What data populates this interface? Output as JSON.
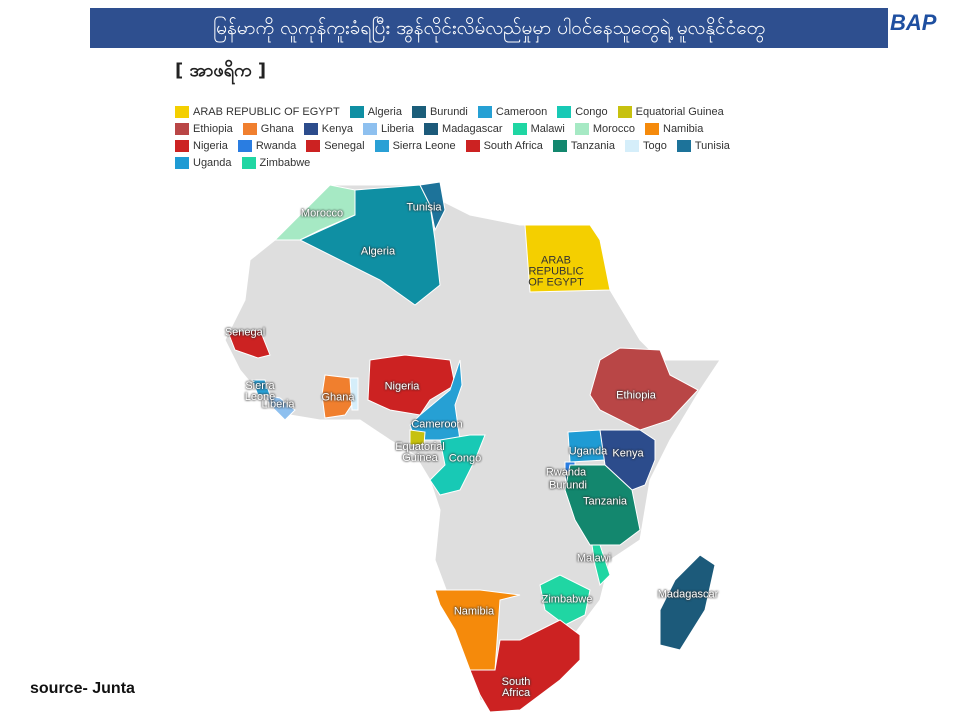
{
  "header": {
    "title": "မြန်မာကို လူကုန်ကူးခံရပြီး အွန်လိုင်းလိမ်လည်မှုမှာ ပါဝင်နေသူတွေရဲ့ မူလနိုင်ငံတွေ",
    "logo": "BAP"
  },
  "subtitle": "[ အာဖရိက ]",
  "legend": [
    {
      "name": "ARAB REPUBLIC OF EGYPT",
      "color": "#f4cf00"
    },
    {
      "name": "Algeria",
      "color": "#0f8fa3"
    },
    {
      "name": "Burundi",
      "color": "#1b5e7a"
    },
    {
      "name": "Cameroon",
      "color": "#26a0d4"
    },
    {
      "name": "Congo",
      "color": "#18c9b5"
    },
    {
      "name": "Equatorial Guinea",
      "color": "#c7c10f"
    },
    {
      "name": "Ethiopia",
      "color": "#b94646"
    },
    {
      "name": "Ghana",
      "color": "#f07f2e"
    },
    {
      "name": "Kenya",
      "color": "#2c4c8c"
    },
    {
      "name": "Liberia",
      "color": "#8ec0ef"
    },
    {
      "name": "Madagascar",
      "color": "#1c5a7a"
    },
    {
      "name": "Malawi",
      "color": "#1fd6a3"
    },
    {
      "name": "Morocco",
      "color": "#a6e9c4"
    },
    {
      "name": "Namibia",
      "color": "#f58a0b"
    },
    {
      "name": "Nigeria",
      "color": "#cc2222"
    },
    {
      "name": "Rwanda",
      "color": "#2a7de1"
    },
    {
      "name": "Senegal",
      "color": "#cc2222"
    },
    {
      "name": "Sierra Leone",
      "color": "#2aa0d5"
    },
    {
      "name": "South Africa",
      "color": "#cc2222"
    },
    {
      "name": "Tanzania",
      "color": "#13876e"
    },
    {
      "name": "Togo",
      "color": "#d5eefa"
    },
    {
      "name": "Tunisia",
      "color": "#1d739a"
    },
    {
      "name": "Uganda",
      "color": "#1f9bd4"
    },
    {
      "name": "Zimbabwe",
      "color": "#20d6a3"
    }
  ],
  "source": "source- Junta"
}
